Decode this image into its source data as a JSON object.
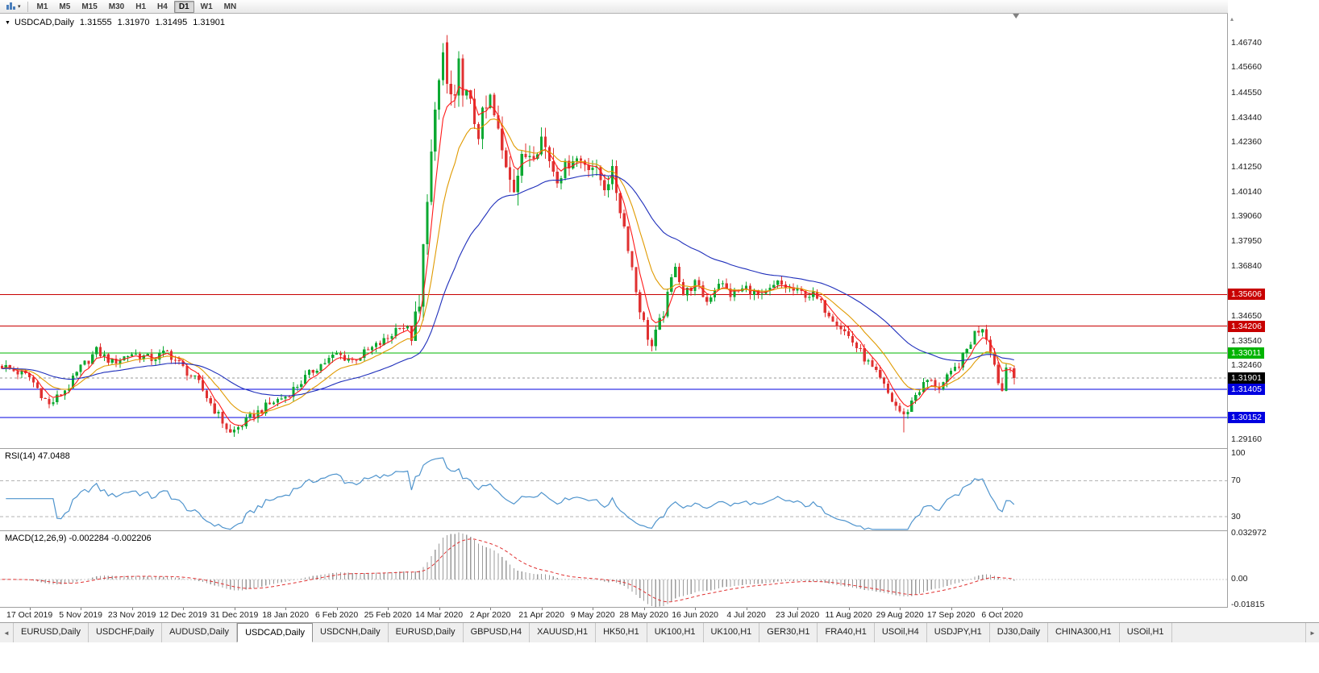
{
  "icons": {
    "title_arrow": "▼",
    "caret": "▾",
    "scroll_left": "◄",
    "scroll_right": "►",
    "overflow": "▸",
    "scale_up": "▴"
  },
  "toolbar": {
    "timeframes": [
      {
        "label": "M1"
      },
      {
        "label": "M5"
      },
      {
        "label": "M15"
      },
      {
        "label": "M30"
      },
      {
        "label": "H1"
      },
      {
        "label": "H4"
      },
      {
        "label": "D1",
        "active": true
      },
      {
        "label": "W1"
      },
      {
        "label": "MN"
      }
    ]
  },
  "chart": {
    "header": {
      "symbol": "USDCAD,Daily",
      "open": "1.31555",
      "high": "1.31970",
      "low": "1.31495",
      "close": "1.31901"
    }
  },
  "chart_data": {
    "type": "candlestick",
    "symbol": "USDCAD",
    "timeframe": "Daily",
    "candles_count": 258,
    "plot": {
      "candles_right_fraction": 0.828
    },
    "colors": {
      "up": "#0ca932",
      "down": "#e03131",
      "background": "#ffffff"
    },
    "price_path": [
      [
        0,
        1.3245
      ],
      [
        7,
        1.3195
      ],
      [
        12,
        1.307
      ],
      [
        17,
        1.3155
      ],
      [
        20,
        1.3235
      ],
      [
        24,
        1.331
      ],
      [
        28,
        1.326
      ],
      [
        33,
        1.33
      ],
      [
        38,
        1.3275
      ],
      [
        42,
        1.3305
      ],
      [
        46,
        1.3235
      ],
      [
        50,
        1.3165
      ],
      [
        54,
        1.305
      ],
      [
        58,
        1.2945
      ],
      [
        61,
        1.2985
      ],
      [
        65,
        1.304
      ],
      [
        69,
        1.3085
      ],
      [
        72,
        1.311
      ],
      [
        76,
        1.3175
      ],
      [
        80,
        1.324
      ],
      [
        85,
        1.3295
      ],
      [
        89,
        1.327
      ],
      [
        93,
        1.331
      ],
      [
        98,
        1.3365
      ],
      [
        101,
        1.343
      ],
      [
        104,
        1.339
      ],
      [
        106,
        1.349
      ],
      [
        108,
        1.402
      ],
      [
        110,
        1.433
      ],
      [
        112,
        1.4674
      ],
      [
        113,
        1.448
      ],
      [
        115,
        1.439
      ],
      [
        116,
        1.456
      ],
      [
        118,
        1.443
      ],
      [
        121,
        1.429
      ],
      [
        124,
        1.442
      ],
      [
        127,
        1.419
      ],
      [
        130,
        1.406
      ],
      [
        133,
        1.418
      ],
      [
        137,
        1.4255
      ],
      [
        141,
        1.408
      ],
      [
        145,
        1.417
      ],
      [
        150,
        1.413
      ],
      [
        153,
        1.404
      ],
      [
        155,
        1.41
      ],
      [
        157,
        1.394
      ],
      [
        159,
        1.378
      ],
      [
        161,
        1.358
      ],
      [
        163,
        1.343
      ],
      [
        165,
        1.333
      ],
      [
        168,
        1.348
      ],
      [
        171,
        1.37
      ],
      [
        173,
        1.356
      ],
      [
        176,
        1.361
      ],
      [
        179,
        1.353
      ],
      [
        182,
        1.362
      ],
      [
        185,
        1.356
      ],
      [
        189,
        1.359
      ],
      [
        193,
        1.3545
      ],
      [
        197,
        1.361
      ],
      [
        202,
        1.357
      ],
      [
        206,
        1.3555
      ],
      [
        210,
        1.348
      ],
      [
        215,
        1.3375
      ],
      [
        219,
        1.328
      ],
      [
        223,
        1.318
      ],
      [
        226,
        1.309
      ],
      [
        229,
        1.302
      ],
      [
        232,
        1.312
      ],
      [
        235,
        1.318
      ],
      [
        238,
        1.315
      ],
      [
        241,
        1.3205
      ],
      [
        244,
        1.328
      ],
      [
        247,
        1.339
      ],
      [
        249,
        1.342
      ],
      [
        251,
        1.332
      ],
      [
        253,
        1.318
      ],
      [
        254,
        1.3135
      ],
      [
        255,
        1.324
      ],
      [
        256,
        1.3255
      ],
      [
        257,
        1.319
      ]
    ],
    "volatility": [
      {
        "from": 0,
        "to": 103,
        "v": 0.0045
      },
      {
        "from": 104,
        "to": 140,
        "v": 0.0125
      },
      {
        "from": 141,
        "to": 167,
        "v": 0.007
      },
      {
        "from": 168,
        "to": 257,
        "v": 0.0048
      }
    ],
    "peak": {
      "index": 112,
      "high": 1.4674
    },
    "spike": {
      "index": 229,
      "low": 1.295
    },
    "last_close": 1.31901,
    "y_axis": {
      "range": [
        1.288,
        1.4805
      ],
      "ticks": [
        "1.46740",
        "1.45660",
        "1.44550",
        "1.43440",
        "1.42360",
        "1.41250",
        "1.40140",
        "1.39060",
        "1.37950",
        "1.36840",
        "1.34650",
        "1.33540",
        "1.32460",
        "1.29160"
      ]
    },
    "levels": [
      {
        "value": 1.35606,
        "label": "1.35606",
        "color": "#c80000"
      },
      {
        "value": 1.34206,
        "label": "1.34206",
        "color": "#c80000"
      },
      {
        "value": 1.33011,
        "label": "1.33011",
        "color": "#00b400"
      },
      {
        "value": 1.31405,
        "label": "1.31405",
        "color": "#0000e0"
      },
      {
        "value": 1.30152,
        "label": "1.30152",
        "color": "#0000e0"
      }
    ],
    "current_price": {
      "value": 1.31901,
      "label": "1.31901",
      "color": "#000000"
    },
    "moving_averages": [
      {
        "period": 5,
        "color": "#ff1a1a"
      },
      {
        "period": 13,
        "color": "#e09a00"
      },
      {
        "period": 40,
        "color": "#1f2fbb"
      }
    ],
    "x_labels": [
      {
        "label": "17 Oct 2019",
        "index": 7
      },
      {
        "label": "5 Nov 2019",
        "index": 20
      },
      {
        "label": "23 Nov 2019",
        "index": 33
      },
      {
        "label": "12 Dec 2019",
        "index": 46
      },
      {
        "label": "31 Dec 2019",
        "index": 59
      },
      {
        "label": "18 Jan 2020",
        "index": 72
      },
      {
        "label": "6 Feb 2020",
        "index": 85
      },
      {
        "label": "25 Feb 2020",
        "index": 98
      },
      {
        "label": "14 Mar 2020",
        "index": 111
      },
      {
        "label": "2 Apr 2020",
        "index": 124
      },
      {
        "label": "21 Apr 2020",
        "index": 137
      },
      {
        "label": "9 May 2020",
        "index": 150
      },
      {
        "label": "28 May 2020",
        "index": 163
      },
      {
        "label": "16 Jun 2020",
        "index": 176
      },
      {
        "label": "4 Jul 2020",
        "index": 189
      },
      {
        "label": "23 Jul 2020",
        "index": 202
      },
      {
        "label": "11 Aug 2020",
        "index": 215
      },
      {
        "label": "29 Aug 2020",
        "index": 228
      },
      {
        "label": "17 Sep 2020",
        "index": 241
      },
      {
        "label": "6 Oct 2020",
        "index": 254
      }
    ],
    "rsi": {
      "label": "RSI(14) 47.0488",
      "period": 14,
      "color": "#4f94cd",
      "range": [
        15,
        105
      ],
      "level_lines": [
        70,
        30
      ],
      "axis_labels": [
        {
          "label": "100",
          "value": 100
        },
        {
          "label": "70",
          "value": 70
        },
        {
          "label": "30",
          "value": 30
        }
      ]
    },
    "macd": {
      "label": "MACD(12,26,9) -0.002284 -0.002206",
      "fast": 12,
      "slow": 26,
      "signal": 9,
      "histogram_color": "#9b9b9b",
      "signal_color": "#e03030",
      "range": [
        -0.0196,
        0.0345
      ],
      "axis_labels": [
        {
          "label": "0.032972",
          "value": 0.032972
        },
        {
          "label": "0.00",
          "value": 0
        },
        {
          "label": "-0.01815",
          "value": -0.01815
        }
      ]
    }
  },
  "tabs": {
    "items": [
      {
        "label": "EURUSD,Daily"
      },
      {
        "label": "USDCHF,Daily"
      },
      {
        "label": "AUDUSD,Daily"
      },
      {
        "label": "USDCAD,Daily",
        "active": true
      },
      {
        "label": "USDCNH,Daily"
      },
      {
        "label": "EURUSD,Daily"
      },
      {
        "label": "GBPUSD,H4"
      },
      {
        "label": "XAUUSD,H1"
      },
      {
        "label": "HK50,H1"
      },
      {
        "label": "UK100,H1"
      },
      {
        "label": "UK100,H1"
      },
      {
        "label": "GER30,H1"
      },
      {
        "label": "FRA40,H1"
      },
      {
        "label": "USOil,H4"
      },
      {
        "label": "USDJPY,H1"
      },
      {
        "label": "DJ30,Daily"
      },
      {
        "label": "CHINA300,H1"
      },
      {
        "label": "USOil,H1"
      }
    ]
  }
}
